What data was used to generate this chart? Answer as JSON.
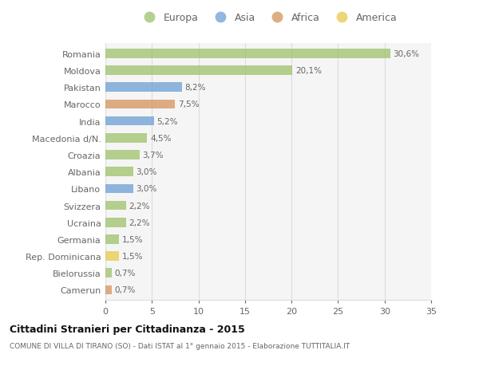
{
  "categories": [
    "Camerun",
    "Bielorussia",
    "Rep. Dominicana",
    "Germania",
    "Ucraina",
    "Svizzera",
    "Libano",
    "Albania",
    "Croazia",
    "Macedonia d/N.",
    "India",
    "Marocco",
    "Pakistan",
    "Moldova",
    "Romania"
  ],
  "values": [
    0.7,
    0.7,
    1.5,
    1.5,
    2.2,
    2.2,
    3.0,
    3.0,
    3.7,
    4.5,
    5.2,
    7.5,
    8.2,
    20.1,
    30.6
  ],
  "labels": [
    "0,7%",
    "0,7%",
    "1,5%",
    "1,5%",
    "2,2%",
    "2,2%",
    "3,0%",
    "3,0%",
    "3,7%",
    "4,5%",
    "5,2%",
    "7,5%",
    "8,2%",
    "20,1%",
    "30,6%"
  ],
  "colors": [
    "#d4935a",
    "#9dc16b",
    "#e8c94a",
    "#9dc16b",
    "#9dc16b",
    "#9dc16b",
    "#6b9fd4",
    "#9dc16b",
    "#9dc16b",
    "#9dc16b",
    "#6b9fd4",
    "#d4935a",
    "#6b9fd4",
    "#9dc16b",
    "#9dc16b"
  ],
  "legend_labels": [
    "Europa",
    "Asia",
    "Africa",
    "America"
  ],
  "legend_colors": [
    "#9dc16b",
    "#6b9fd4",
    "#d4935a",
    "#e8c94a"
  ],
  "xlim": [
    0,
    35
  ],
  "xticks": [
    0,
    5,
    10,
    15,
    20,
    25,
    30,
    35
  ],
  "title": "Cittadini Stranieri per Cittadinanza - 2015",
  "subtitle": "COMUNE DI VILLA DI TIRANO (SO) - Dati ISTAT al 1° gennaio 2015 - Elaborazione TUTTITALIA.IT",
  "bg_color": "#ffffff",
  "plot_bg_color": "#f5f5f5",
  "bar_alpha": 0.75,
  "grid_color": "#dddddd",
  "label_color": "#666666",
  "title_color": "#111111",
  "subtitle_color": "#666666"
}
